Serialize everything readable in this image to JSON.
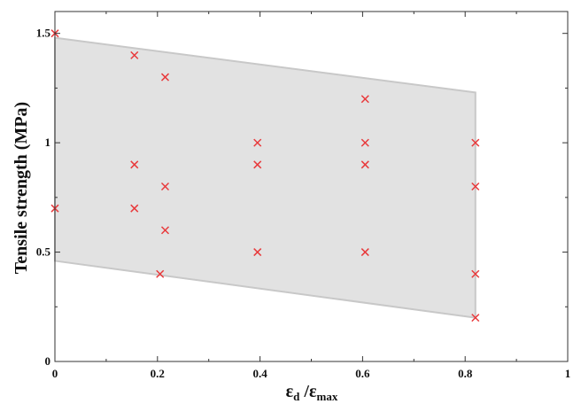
{
  "chart_data": {
    "type": "scatter",
    "title": "",
    "xlabel": {
      "main": "ε",
      "main_sub": "d",
      "sep": " /",
      "den": "ε",
      "den_sub": "max"
    },
    "ylabel": "Tensile strength (MPa)",
    "xlim": [
      0,
      1
    ],
    "ylim": [
      0,
      1.6
    ],
    "xticks": [
      0,
      0.2,
      0.4,
      0.6,
      0.8,
      1
    ],
    "xtick_labels": [
      "0",
      "0.2",
      "0.4",
      "0.6",
      "0.8",
      "1"
    ],
    "yticks": [
      0,
      0.5,
      1,
      1.5
    ],
    "ytick_labels": [
      "0",
      "0.5",
      "1",
      "1.5"
    ],
    "grid": false,
    "marker": "x",
    "colors": {
      "marker": "#e8393b",
      "band_fill": "#e2e2e2",
      "band_edge": "#c8c8c8",
      "axis": "#333333"
    },
    "band": {
      "upper": [
        [
          0,
          1.48
        ],
        [
          0.82,
          1.23
        ]
      ],
      "lower": [
        [
          0,
          0.46
        ],
        [
          0.82,
          0.2
        ]
      ]
    },
    "points": [
      {
        "x": 0,
        "y": 1.5
      },
      {
        "x": 0,
        "y": 0.7
      },
      {
        "x": 0.155,
        "y": 1.4
      },
      {
        "x": 0.155,
        "y": 0.9
      },
      {
        "x": 0.155,
        "y": 0.7
      },
      {
        "x": 0.215,
        "y": 1.3
      },
      {
        "x": 0.215,
        "y": 0.8
      },
      {
        "x": 0.215,
        "y": 0.6
      },
      {
        "x": 0.205,
        "y": 0.4
      },
      {
        "x": 0.395,
        "y": 1.0
      },
      {
        "x": 0.395,
        "y": 0.9
      },
      {
        "x": 0.395,
        "y": 0.5
      },
      {
        "x": 0.605,
        "y": 1.2
      },
      {
        "x": 0.605,
        "y": 1.0
      },
      {
        "x": 0.605,
        "y": 0.9
      },
      {
        "x": 0.605,
        "y": 0.5
      },
      {
        "x": 0.82,
        "y": 1.0
      },
      {
        "x": 0.82,
        "y": 0.8
      },
      {
        "x": 0.82,
        "y": 0.4
      },
      {
        "x": 0.82,
        "y": 0.2
      }
    ]
  }
}
